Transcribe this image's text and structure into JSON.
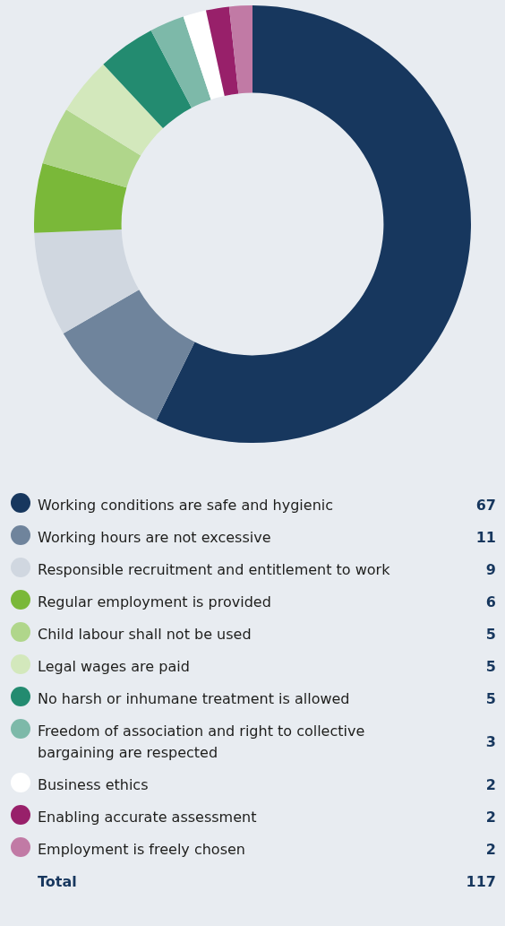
{
  "chart_data": {
    "type": "donut",
    "categories": [
      "Working conditions are safe and hygienic",
      "Working hours are not excessive",
      "Responsible recruitment and entitlement to work",
      "Regular employment is provided",
      "Child labour shall not be used",
      "Legal wages are paid",
      "No harsh or inhumane treatment is allowed",
      "Freedom of association and right to collective bargaining are respected",
      "Business ethics",
      "Enabling accurate assessment",
      "Employment is freely chosen"
    ],
    "values": [
      67,
      11,
      9,
      6,
      5,
      5,
      5,
      3,
      2,
      2,
      2
    ],
    "colors": [
      "#17375e",
      "#6f849c",
      "#d0d7e0",
      "#7ab839",
      "#b0d68b",
      "#d3e8bc",
      "#238b70",
      "#7db9a9",
      "#ffffff",
      "#98206a",
      "#c17aa5"
    ],
    "legend": "bottom",
    "data_labels": true,
    "annotations": [
      "Total",
      "117"
    ]
  }
}
